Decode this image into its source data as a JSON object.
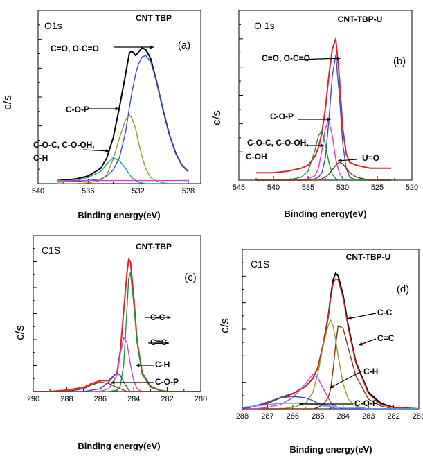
{
  "colors": {
    "black": "#000000",
    "red": "#e0202a",
    "blue": "#3050c0",
    "olive": "#9a9a20",
    "teal": "#20a0a0",
    "magenta": "#d040c0",
    "green": "#209040",
    "brown": "#7a3a10",
    "lightblue": "#5aa0e0",
    "gray": "#a0a0a0"
  },
  "chart_data": [
    {
      "type": "line",
      "panel": "(a)",
      "corner_label": "O1s",
      "sample": "CNT TBP",
      "xlabel": "Binding energy(eV)",
      "ylabel": "c/s",
      "xlim": [
        540,
        527
      ],
      "ylim": [
        0,
        1.0
      ],
      "x_ticks": [
        540,
        536,
        532,
        528
      ],
      "x": [
        538.5,
        537,
        536,
        535,
        534.5,
        534,
        533.5,
        533,
        532.7,
        532.5,
        532.2,
        532,
        531.7,
        531.4,
        531,
        530.5,
        530,
        529.5,
        529,
        528.5,
        528
      ],
      "series": [
        {
          "name": "",
          "role": "envelope",
          "color_key": "black",
          "values": [
            0.02,
            0.03,
            0.05,
            0.1,
            0.17,
            0.3,
            0.5,
            0.72,
            0.86,
            0.87,
            0.84,
            0.86,
            0.89,
            0.88,
            0.82,
            0.66,
            0.48,
            0.32,
            0.2,
            0.12,
            0.08
          ]
        },
        {
          "name": "",
          "role": "fit",
          "color_key": "blue",
          "values": [
            0.01,
            0.015,
            0.02,
            0.03,
            0.05,
            0.09,
            0.17,
            0.34,
            0.5,
            0.6,
            0.72,
            0.78,
            0.83,
            0.84,
            0.8,
            0.66,
            0.48,
            0.32,
            0.2,
            0.12,
            0.08
          ]
        },
        {
          "name": "",
          "role": "fit",
          "color_key": "olive",
          "values": [
            0.0,
            0.0,
            0.005,
            0.02,
            0.06,
            0.16,
            0.3,
            0.42,
            0.45,
            0.43,
            0.36,
            0.28,
            0.18,
            0.1,
            0.04,
            0.015,
            0.005,
            0.0,
            0.0,
            0.0,
            0.0
          ]
        },
        {
          "name": "",
          "role": "fit",
          "color_key": "teal",
          "values": [
            0.01,
            0.02,
            0.04,
            0.08,
            0.13,
            0.17,
            0.15,
            0.1,
            0.06,
            0.04,
            0.02,
            0.01,
            0.005,
            0.0,
            0.0,
            0.0,
            0.0,
            0.0,
            0.0,
            0.0,
            0.0
          ]
        },
        {
          "name": "",
          "role": "baseline",
          "color_key": "magenta",
          "values": [
            0.02,
            0.02,
            0.02,
            0.02,
            0.02,
            0.02,
            0.02,
            0.02,
            0.02,
            0.02,
            0.02,
            0.02,
            0.02,
            0.02,
            0.02,
            0.02,
            0.02,
            0.02,
            0.02,
            0.02,
            0.02
          ]
        }
      ],
      "annotations": [
        {
          "text": "C=O, O-C=O",
          "x": 531.4
        },
        {
          "text": "C-O-P",
          "x": 533.0
        },
        {
          "text": "C-O-C, C-O-OH,",
          "x": 534.0
        },
        {
          "text": "C-H",
          "x": null
        }
      ]
    },
    {
      "type": "line",
      "panel": "(b)",
      "corner_label": "O 1s",
      "sample": "CNT-TBP-U",
      "xlabel": "Binding energy(eV)",
      "ylabel": "c/s",
      "xlim": [
        545,
        520
      ],
      "ylim": [
        0,
        1.0
      ],
      "x_ticks": [
        545,
        540,
        535,
        530,
        525,
        520
      ],
      "x": [
        542.5,
        540,
        538,
        536,
        535,
        534,
        533.5,
        533,
        532.5,
        532,
        531.5,
        531,
        530.5,
        530,
        529.5,
        529,
        528,
        527,
        526,
        525,
        523
      ],
      "series": [
        {
          "name": "",
          "role": "envelope",
          "color_key": "red",
          "values": [
            0.05,
            0.05,
            0.06,
            0.08,
            0.1,
            0.16,
            0.22,
            0.32,
            0.48,
            0.7,
            0.88,
            0.95,
            0.7,
            0.35,
            0.18,
            0.12,
            0.1,
            0.09,
            0.08,
            0.08,
            0.08
          ]
        },
        {
          "name": "",
          "role": "fit",
          "color_key": "blue",
          "values": [
            0.0,
            0.0,
            0.0,
            0.0,
            0.0,
            0.01,
            0.02,
            0.05,
            0.15,
            0.4,
            0.7,
            0.84,
            0.58,
            0.25,
            0.08,
            0.02,
            0.0,
            0.0,
            0.0,
            0.0,
            0.0
          ]
        },
        {
          "name": "",
          "role": "fit",
          "color_key": "magenta",
          "values": [
            0.0,
            0.0,
            0.0,
            0.0,
            0.01,
            0.03,
            0.08,
            0.2,
            0.35,
            0.4,
            0.3,
            0.14,
            0.05,
            0.01,
            0.0,
            0.0,
            0.0,
            0.0,
            0.0,
            0.0,
            0.0
          ]
        },
        {
          "name": "",
          "role": "fit",
          "color_key": "green",
          "values": [
            0.0,
            0.0,
            0.0,
            0.02,
            0.06,
            0.2,
            0.3,
            0.33,
            0.24,
            0.12,
            0.04,
            0.01,
            0.0,
            0.0,
            0.0,
            0.0,
            0.0,
            0.0,
            0.0,
            0.0,
            0.0
          ]
        },
        {
          "name": "",
          "role": "fit",
          "color_key": "brown",
          "values": [
            0.0,
            0.0,
            0.0,
            0.0,
            0.0,
            0.0,
            0.0,
            0.01,
            0.02,
            0.04,
            0.07,
            0.1,
            0.12,
            0.11,
            0.08,
            0.05,
            0.02,
            0.01,
            0.0,
            0.0,
            0.0
          ]
        }
      ],
      "annotations": [
        {
          "text": "C=O, O-C=O",
          "x": 531.0
        },
        {
          "text": "C-O-P",
          "x": 532.0
        },
        {
          "text": "C-O-C, C-O-OH,",
          "x": 533.0
        },
        {
          "text": "C-OH",
          "x": null
        },
        {
          "text": "U=O",
          "x": 530.0
        }
      ]
    },
    {
      "type": "line",
      "panel": "(c)",
      "corner_label": "C1S",
      "sample": "CNT-TBP",
      "xlabel": "Binding energy(eV)",
      "ylabel": "c/s",
      "xlim": [
        290,
        280
      ],
      "ylim": [
        0,
        1.0
      ],
      "x_ticks": [
        290,
        288,
        286,
        284,
        282,
        280
      ],
      "x": [
        290,
        289,
        288,
        287,
        286.5,
        286,
        285.5,
        285,
        284.8,
        284.6,
        284.4,
        284.3,
        284.2,
        284.0,
        283.8,
        283.5,
        283,
        282.5,
        282,
        281,
        280
      ],
      "series": [
        {
          "name": "",
          "role": "envelope",
          "color_key": "red",
          "values": [
            0.0,
            0.0,
            0.01,
            0.03,
            0.06,
            0.08,
            0.08,
            0.14,
            0.3,
            0.6,
            0.88,
            0.98,
            0.96,
            0.7,
            0.38,
            0.14,
            0.04,
            0.01,
            0.0,
            0.0,
            0.0
          ]
        },
        {
          "name": "",
          "role": "fit",
          "color_key": "green",
          "values": [
            0.0,
            0.0,
            0.0,
            0.0,
            0.0,
            0.0,
            0.0,
            0.01,
            0.04,
            0.2,
            0.62,
            0.84,
            0.88,
            0.65,
            0.36,
            0.13,
            0.03,
            0.01,
            0.0,
            0.0,
            0.0
          ]
        },
        {
          "name": "",
          "role": "fit",
          "color_key": "magenta",
          "values": [
            0.0,
            0.0,
            0.0,
            0.0,
            0.0,
            0.0,
            0.02,
            0.12,
            0.28,
            0.4,
            0.36,
            0.28,
            0.2,
            0.08,
            0.02,
            0.0,
            0.0,
            0.0,
            0.0,
            0.0,
            0.0
          ]
        },
        {
          "name": "",
          "role": "fit",
          "color_key": "blue",
          "values": [
            0.0,
            0.0,
            0.0,
            0.0,
            0.01,
            0.02,
            0.07,
            0.14,
            0.12,
            0.07,
            0.03,
            0.01,
            0.0,
            0.0,
            0.0,
            0.0,
            0.0,
            0.0,
            0.0,
            0.0,
            0.0
          ]
        },
        {
          "name": "",
          "role": "fit",
          "color_key": "brown",
          "values": [
            0.0,
            0.0,
            0.0,
            0.02,
            0.05,
            0.07,
            0.06,
            0.03,
            0.02,
            0.01,
            0.0,
            0.0,
            0.0,
            0.0,
            0.0,
            0.0,
            0.0,
            0.0,
            0.0,
            0.0,
            0.0
          ]
        }
      ],
      "annotations": [
        {
          "text": "C-C",
          "x": 284.2
        },
        {
          "text": "C=C",
          "x": 284.6
        },
        {
          "text": "C-H",
          "x": 285.0
        },
        {
          "text": "C-O-P",
          "x": 286.0
        }
      ]
    },
    {
      "type": "line",
      "panel": "(d)",
      "corner_label": "C1S",
      "sample": "CNT-TBP-U",
      "xlabel": "Binding energy(eV)",
      "ylabel": "c/s",
      "xlim": [
        288,
        281
      ],
      "ylim": [
        0,
        1.0
      ],
      "x_ticks": [
        288,
        287,
        286,
        285,
        284,
        283,
        282,
        281
      ],
      "x": [
        288,
        287.5,
        287,
        286.5,
        286,
        285.5,
        285.2,
        285,
        284.8,
        284.6,
        284.5,
        284.4,
        284.3,
        284.2,
        284,
        283.8,
        283.5,
        283,
        282.5,
        282,
        281
      ],
      "series": [
        {
          "name": "",
          "role": "envelope",
          "color_key": "black",
          "values": [
            0.0,
            0.02,
            0.04,
            0.08,
            0.11,
            0.16,
            0.22,
            0.3,
            0.46,
            0.66,
            0.8,
            0.93,
            0.98,
            0.96,
            0.82,
            0.6,
            0.34,
            0.12,
            0.04,
            0.01,
            0.0
          ]
        },
        {
          "name": "",
          "role": "fit",
          "color_key": "red",
          "values": [
            0.0,
            0.02,
            0.04,
            0.08,
            0.11,
            0.16,
            0.22,
            0.3,
            0.46,
            0.66,
            0.79,
            0.9,
            0.94,
            0.93,
            0.8,
            0.58,
            0.33,
            0.11,
            0.03,
            0.01,
            0.0
          ]
        },
        {
          "name": "",
          "role": "fit",
          "color_key": "olive",
          "values": [
            0.0,
            0.0,
            0.0,
            0.0,
            0.01,
            0.04,
            0.12,
            0.26,
            0.45,
            0.6,
            0.64,
            0.6,
            0.5,
            0.38,
            0.18,
            0.07,
            0.02,
            0.0,
            0.0,
            0.0,
            0.0
          ]
        },
        {
          "name": "",
          "role": "fit",
          "color_key": "brown",
          "values": [
            0.0,
            0.0,
            0.0,
            0.0,
            0.0,
            0.0,
            0.0,
            0.01,
            0.03,
            0.08,
            0.14,
            0.28,
            0.46,
            0.6,
            0.58,
            0.44,
            0.24,
            0.07,
            0.02,
            0.0,
            0.0
          ]
        },
        {
          "name": "",
          "role": "fit",
          "color_key": "magenta",
          "values": [
            0.0,
            0.0,
            0.01,
            0.03,
            0.08,
            0.18,
            0.25,
            0.22,
            0.15,
            0.08,
            0.05,
            0.03,
            0.02,
            0.01,
            0.0,
            0.0,
            0.0,
            0.0,
            0.0,
            0.0,
            0.0
          ]
        },
        {
          "name": "",
          "role": "fit",
          "color_key": "blue",
          "values": [
            0.0,
            0.02,
            0.05,
            0.08,
            0.09,
            0.08,
            0.06,
            0.04,
            0.03,
            0.02,
            0.01,
            0.01,
            0.0,
            0.0,
            0.0,
            0.0,
            0.0,
            0.0,
            0.0,
            0.0,
            0.0
          ]
        },
        {
          "name": "",
          "role": "baseline",
          "color_key": "lightblue",
          "values": [
            0.01,
            0.02,
            0.03,
            0.04,
            0.04,
            0.04,
            0.03,
            0.03,
            0.02,
            0.02,
            0.02,
            0.02,
            0.01,
            0.01,
            0.01,
            0.01,
            0.01,
            0.0,
            0.0,
            0.0,
            0.0
          ]
        }
      ],
      "annotations": [
        {
          "text": "C-C",
          "x": 284.2
        },
        {
          "text": "C=C",
          "x": 284.5
        },
        {
          "text": "C-H",
          "x": 285.0
        },
        {
          "text": "C-O-P",
          "x": 285.8
        }
      ]
    }
  ]
}
